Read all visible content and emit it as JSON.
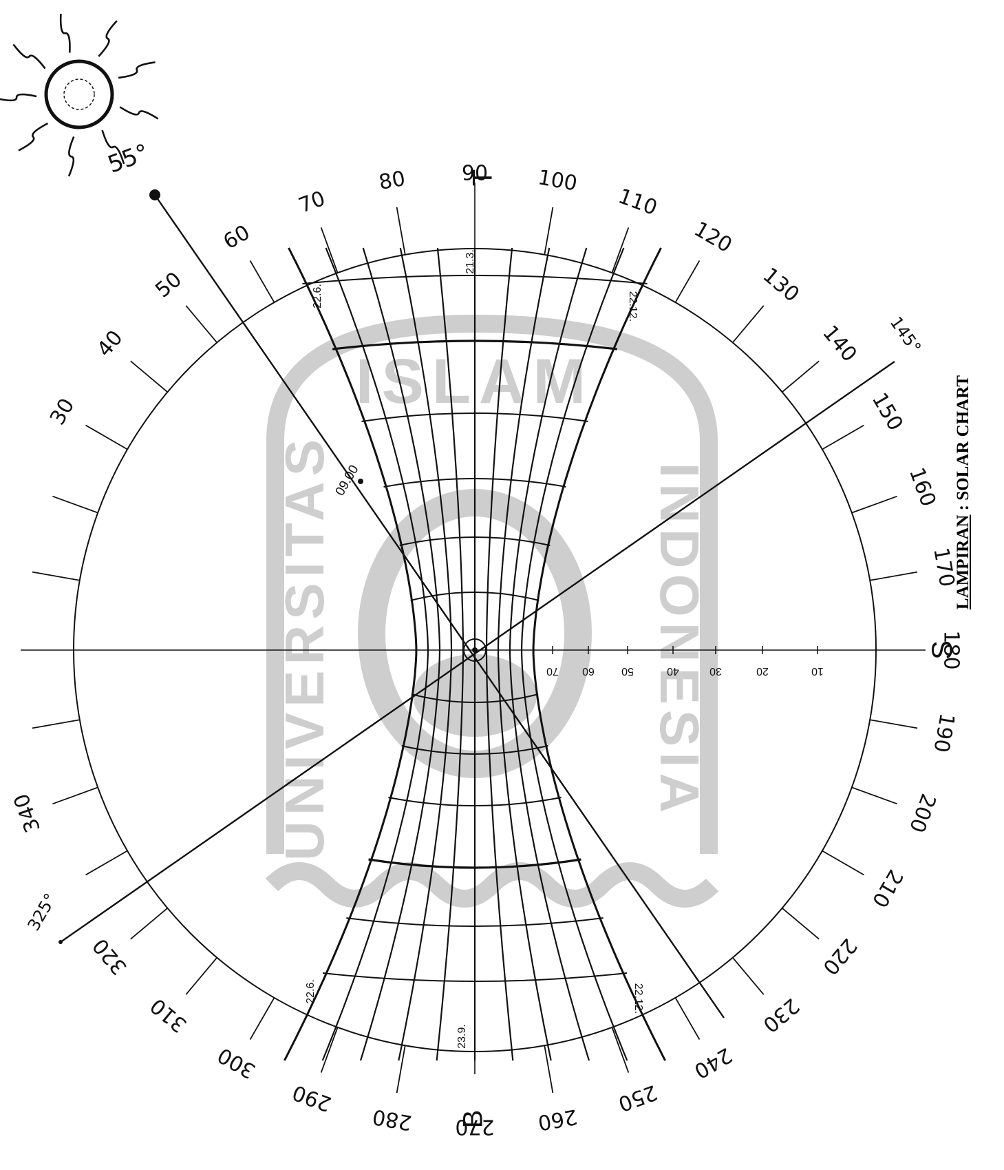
{
  "caption": {
    "underlined": "LAMPIRAN",
    "rest": " : SOLAR CHART"
  },
  "sun": {
    "angle_label": "55°"
  },
  "bearing_labels": [
    {
      "deg": 30,
      "text": "30"
    },
    {
      "deg": 40,
      "text": "40"
    },
    {
      "deg": 50,
      "text": "50"
    },
    {
      "deg": 60,
      "text": "60"
    },
    {
      "deg": 70,
      "text": "70"
    },
    {
      "deg": 80,
      "text": "80"
    },
    {
      "deg": 90,
      "text": "90"
    },
    {
      "deg": 100,
      "text": "100"
    },
    {
      "deg": 110,
      "text": "110"
    },
    {
      "deg": 120,
      "text": "120"
    },
    {
      "deg": 130,
      "text": "130"
    },
    {
      "deg": 140,
      "text": "140"
    },
    {
      "deg": 150,
      "text": "150"
    },
    {
      "deg": 160,
      "text": "160"
    },
    {
      "deg": 170,
      "text": "170"
    },
    {
      "deg": 180,
      "text": "180"
    },
    {
      "deg": 190,
      "text": "190"
    },
    {
      "deg": 200,
      "text": "200"
    },
    {
      "deg": 210,
      "text": "210"
    },
    {
      "deg": 220,
      "text": "220"
    },
    {
      "deg": 230,
      "text": "230"
    },
    {
      "deg": 240,
      "text": "240"
    },
    {
      "deg": 250,
      "text": "250"
    },
    {
      "deg": 260,
      "text": "260"
    },
    {
      "deg": 270,
      "text": "270"
    },
    {
      "deg": 280,
      "text": "280"
    },
    {
      "deg": 290,
      "text": "290"
    },
    {
      "deg": 300,
      "text": "300"
    },
    {
      "deg": 310,
      "text": "310"
    },
    {
      "deg": 320,
      "text": "320"
    },
    {
      "deg": 340,
      "text": "340"
    }
  ],
  "compass": {
    "east": "T",
    "south": "S",
    "west": "B"
  },
  "altitude_scale": [
    "10",
    "20",
    "30",
    "40",
    "50",
    "60",
    "70"
  ],
  "date_labels": {
    "top_left": "22.6.",
    "top_mid": "21.3.",
    "top_right": "22.12.",
    "bot_left": "22.6.",
    "bot_mid": "23.9.",
    "bot_right": "22.12."
  },
  "time_label": "09.00",
  "ray_labels": {
    "bearing_145": "145°",
    "bearing_325": "325°"
  },
  "watermark": {
    "line1": "ISLAM",
    "line2": "UNIVERSITAS",
    "line3": "INDONESIA",
    "color": "#c9c9c9"
  },
  "colors": {
    "ink": "#111111",
    "paper": "#ffffff"
  }
}
